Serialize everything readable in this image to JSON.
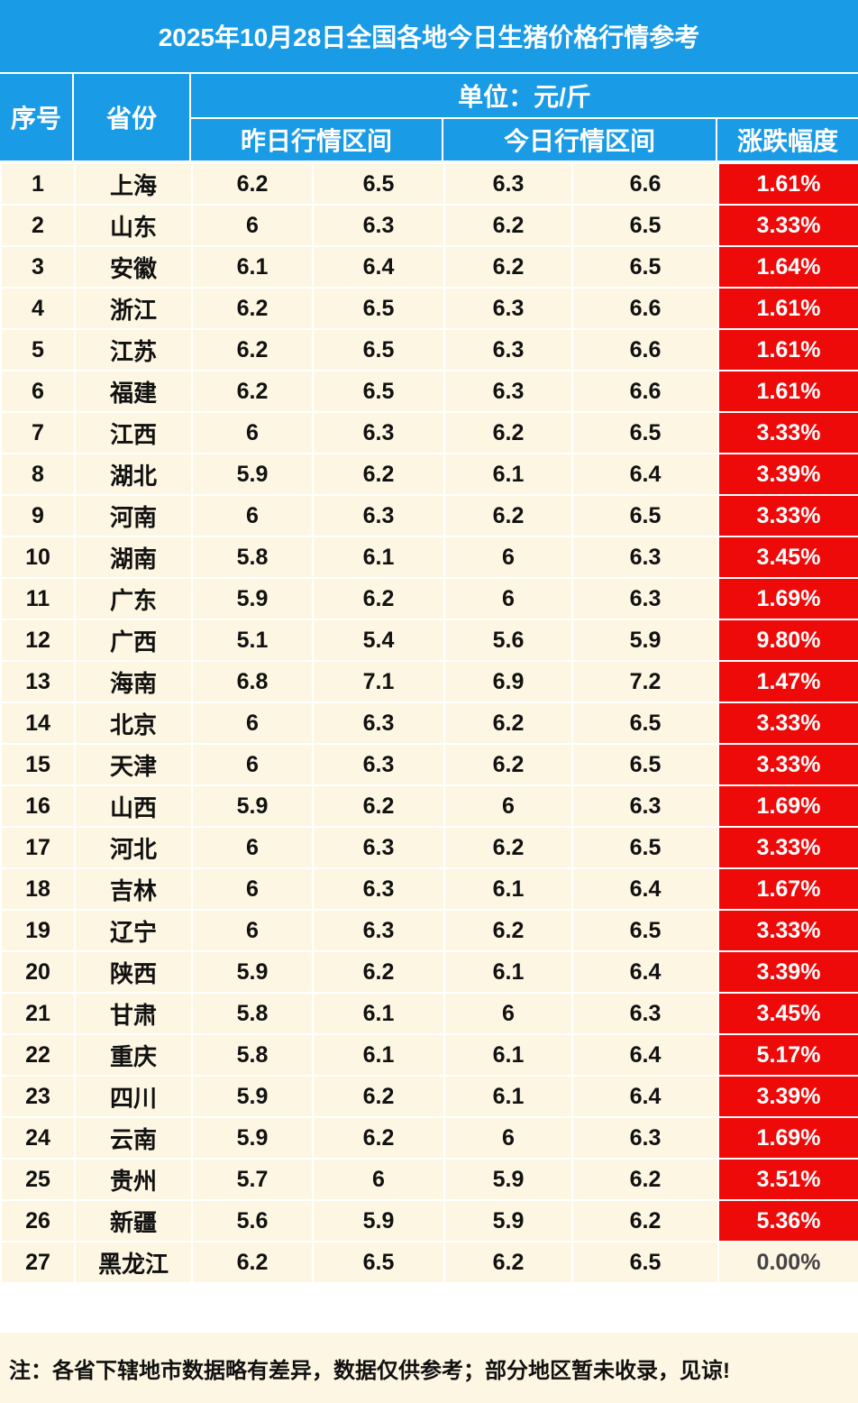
{
  "title": "2025年10月28日全国各地今日生猪价格行情参考",
  "headers": {
    "index": "序号",
    "province": "省份",
    "unit": "单位：元/斤",
    "yesterday": "昨日行情区间",
    "today": "今日行情区间",
    "change": "涨跌幅度"
  },
  "rows": [
    {
      "idx": "1",
      "province": "上海",
      "y_low": "6.2",
      "y_high": "6.5",
      "t_low": "6.3",
      "t_high": "6.6",
      "change": "1.61%"
    },
    {
      "idx": "2",
      "province": "山东",
      "y_low": "6",
      "y_high": "6.3",
      "t_low": "6.2",
      "t_high": "6.5",
      "change": "3.33%"
    },
    {
      "idx": "3",
      "province": "安徽",
      "y_low": "6.1",
      "y_high": "6.4",
      "t_low": "6.2",
      "t_high": "6.5",
      "change": "1.64%"
    },
    {
      "idx": "4",
      "province": "浙江",
      "y_low": "6.2",
      "y_high": "6.5",
      "t_low": "6.3",
      "t_high": "6.6",
      "change": "1.61%"
    },
    {
      "idx": "5",
      "province": "江苏",
      "y_low": "6.2",
      "y_high": "6.5",
      "t_low": "6.3",
      "t_high": "6.6",
      "change": "1.61%"
    },
    {
      "idx": "6",
      "province": "福建",
      "y_low": "6.2",
      "y_high": "6.5",
      "t_low": "6.3",
      "t_high": "6.6",
      "change": "1.61%"
    },
    {
      "idx": "7",
      "province": "江西",
      "y_low": "6",
      "y_high": "6.3",
      "t_low": "6.2",
      "t_high": "6.5",
      "change": "3.33%"
    },
    {
      "idx": "8",
      "province": "湖北",
      "y_low": "5.9",
      "y_high": "6.2",
      "t_low": "6.1",
      "t_high": "6.4",
      "change": "3.39%"
    },
    {
      "idx": "9",
      "province": "河南",
      "y_low": "6",
      "y_high": "6.3",
      "t_low": "6.2",
      "t_high": "6.5",
      "change": "3.33%"
    },
    {
      "idx": "10",
      "province": "湖南",
      "y_low": "5.8",
      "y_high": "6.1",
      "t_low": "6",
      "t_high": "6.3",
      "change": "3.45%"
    },
    {
      "idx": "11",
      "province": "广东",
      "y_low": "5.9",
      "y_high": "6.2",
      "t_low": "6",
      "t_high": "6.3",
      "change": "1.69%"
    },
    {
      "idx": "12",
      "province": "广西",
      "y_low": "5.1",
      "y_high": "5.4",
      "t_low": "5.6",
      "t_high": "5.9",
      "change": "9.80%"
    },
    {
      "idx": "13",
      "province": "海南",
      "y_low": "6.8",
      "y_high": "7.1",
      "t_low": "6.9",
      "t_high": "7.2",
      "change": "1.47%"
    },
    {
      "idx": "14",
      "province": "北京",
      "y_low": "6",
      "y_high": "6.3",
      "t_low": "6.2",
      "t_high": "6.5",
      "change": "3.33%"
    },
    {
      "idx": "15",
      "province": "天津",
      "y_low": "6",
      "y_high": "6.3",
      "t_low": "6.2",
      "t_high": "6.5",
      "change": "3.33%"
    },
    {
      "idx": "16",
      "province": "山西",
      "y_low": "5.9",
      "y_high": "6.2",
      "t_low": "6",
      "t_high": "6.3",
      "change": "1.69%"
    },
    {
      "idx": "17",
      "province": "河北",
      "y_low": "6",
      "y_high": "6.3",
      "t_low": "6.2",
      "t_high": "6.5",
      "change": "3.33%"
    },
    {
      "idx": "18",
      "province": "吉林",
      "y_low": "6",
      "y_high": "6.3",
      "t_low": "6.1",
      "t_high": "6.4",
      "change": "1.67%"
    },
    {
      "idx": "19",
      "province": "辽宁",
      "y_low": "6",
      "y_high": "6.3",
      "t_low": "6.2",
      "t_high": "6.5",
      "change": "3.33%"
    },
    {
      "idx": "20",
      "province": "陕西",
      "y_low": "5.9",
      "y_high": "6.2",
      "t_low": "6.1",
      "t_high": "6.4",
      "change": "3.39%"
    },
    {
      "idx": "21",
      "province": "甘肃",
      "y_low": "5.8",
      "y_high": "6.1",
      "t_low": "6",
      "t_high": "6.3",
      "change": "3.45%"
    },
    {
      "idx": "22",
      "province": "重庆",
      "y_low": "5.8",
      "y_high": "6.1",
      "t_low": "6.1",
      "t_high": "6.4",
      "change": "5.17%"
    },
    {
      "idx": "23",
      "province": "四川",
      "y_low": "5.9",
      "y_high": "6.2",
      "t_low": "6.1",
      "t_high": "6.4",
      "change": "3.39%"
    },
    {
      "idx": "24",
      "province": "云南",
      "y_low": "5.9",
      "y_high": "6.2",
      "t_low": "6",
      "t_high": "6.3",
      "change": "1.69%"
    },
    {
      "idx": "25",
      "province": "贵州",
      "y_low": "5.7",
      "y_high": "6",
      "t_low": "5.9",
      "t_high": "6.2",
      "change": "3.51%"
    },
    {
      "idx": "26",
      "province": "新疆",
      "y_low": "5.6",
      "y_high": "5.9",
      "t_low": "5.9",
      "t_high": "6.2",
      "change": "5.36%"
    },
    {
      "idx": "27",
      "province": "黑龙江",
      "y_low": "6.2",
      "y_high": "6.5",
      "t_low": "6.2",
      "t_high": "6.5",
      "change": "0.00%"
    }
  ],
  "note": "注：各省下辖地市数据略有差异，数据仅供参考；部分地区暂未收录，见谅!",
  "colors": {
    "header_bg": "#1a9be6",
    "row_bg": "#fdf6e3",
    "rise_bg": "#ef0a0a"
  }
}
